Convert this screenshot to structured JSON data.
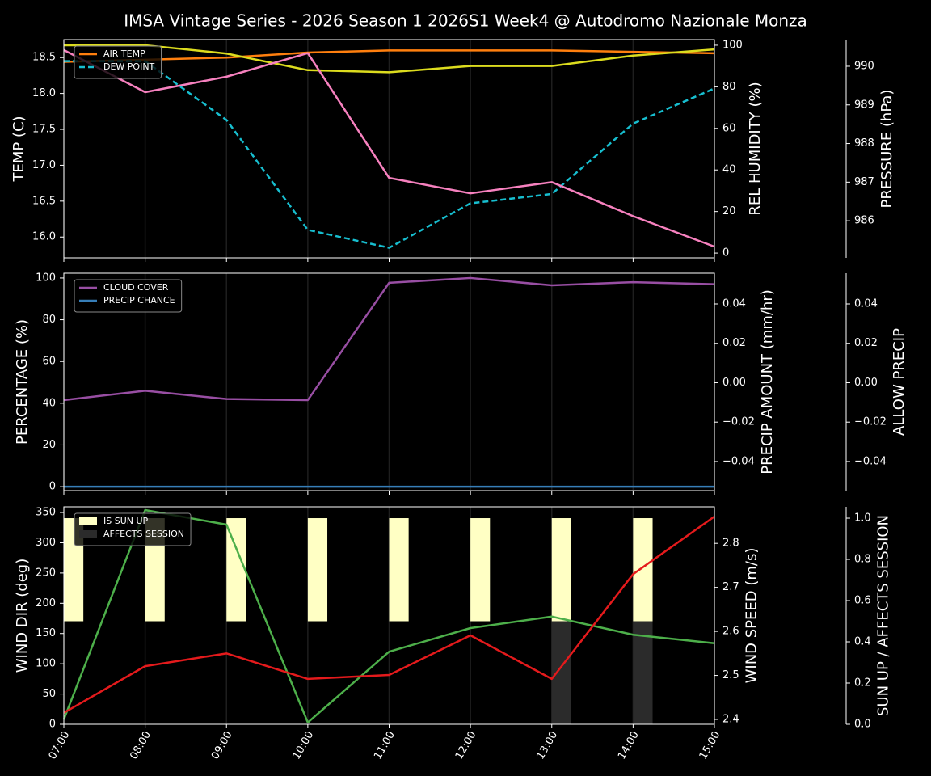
{
  "chart_data": [
    {
      "type": "line",
      "title": "IMSA Vintage Series - 2026 Season 1 2026S1 Week4 @ Autodromo Nazionale Monza",
      "ylabel": "TEMP (C)",
      "ylabel_color": "#ffffff",
      "ylim": [
        15.71,
        18.75
      ],
      "yticks": [
        {
          "value": 16,
          "label": "16.0"
        },
        16.5,
        {
          "value": 17,
          "label": "17.0"
        },
        17.5,
        {
          "value": 18,
          "label": "18.0"
        },
        18.5
      ],
      "y2label": "REL HUMIDITY (%)",
      "y2label_color": "#dcdc1e",
      "y2lim": [
        -2.3,
        102.7
      ],
      "y2ticks": [
        0,
        20,
        40,
        60,
        80,
        100
      ],
      "y3label": "PRESSURE (hPa)",
      "y3label_color": "#f781bf",
      "y3lim": [
        985.04,
        990.69
      ],
      "y3ticks": [
        986,
        987,
        988,
        989,
        990
      ],
      "grid": true,
      "legend": "upper left",
      "series": [
        {
          "name": "AIR TEMP",
          "color": "#ff7f0e",
          "values": [
            18.44,
            18.47,
            18.5,
            18.57,
            18.6,
            18.6,
            18.6,
            18.58,
            18.56
          ]
        },
        {
          "name": "DEW POINT",
          "color": "#17becf",
          "dash": "dashed",
          "values": [
            18.45,
            18.45,
            17.63,
            16.1,
            15.85,
            16.47,
            16.6,
            17.58,
            18.07
          ]
        },
        {
          "color": "#dcdc1e",
          "axis": "y2",
          "values": [
            100,
            100,
            96,
            88,
            87,
            90,
            90,
            95,
            98
          ]
        },
        {
          "color": "#f781bf",
          "axis": "y3",
          "values": [
            990.42,
            989.33,
            989.73,
            990.34,
            987.11,
            986.71,
            987.0,
            986.12,
            985.33
          ]
        }
      ]
    },
    {
      "type": "line",
      "ylabel": "PERCENTAGE (%)",
      "ylabel_color": "#ffffff",
      "ylim": [
        -1.9,
        102.3
      ],
      "yticks": [
        0,
        20,
        40,
        60,
        80,
        100
      ],
      "y2label": "PRECIP AMOUNT (mm/hr)",
      "y2label_color": "#a0522d",
      "y2lim": [
        -0.0548,
        0.0556
      ],
      "y2ticks": [
        {
          "value": -0.04,
          "label": "−0.04"
        },
        {
          "value": -0.02,
          "label": "−0.02"
        },
        {
          "value": 0,
          "label": "0.00"
        },
        0.02,
        0.04
      ],
      "y3label": "ALLOW PRECIP",
      "y3label_color": "#ffffff",
      "y3lim": [
        -0.0548,
        0.0556
      ],
      "y3ticks": [
        {
          "value": -0.04,
          "label": "−0.04"
        },
        {
          "value": -0.02,
          "label": "−0.02"
        },
        {
          "value": 0,
          "label": "0.00"
        },
        0.02,
        0.04
      ],
      "grid": true,
      "legend": "upper left",
      "series": [
        {
          "name": "CLOUD COVER",
          "color": "#984ea3",
          "values": [
            41.5,
            46,
            42,
            41.5,
            97.7,
            100,
            96.5,
            98,
            97
          ]
        },
        {
          "name": "PRECIP CHANCE",
          "color": "#377eb8",
          "values": [
            0,
            0,
            0,
            0,
            0,
            0,
            0,
            0,
            0
          ]
        }
      ]
    },
    {
      "type": "line",
      "categories": [
        "07:00",
        "08:00",
        "09:00",
        "10:00",
        "11:00",
        "12:00",
        "13:00",
        "14:00",
        "15:00"
      ],
      "ylabel": "WIND DIR (deg)",
      "ylabel_color": "#4daf4a",
      "ylim": [
        0,
        359.4
      ],
      "yticks": [
        0,
        50,
        100,
        150,
        200,
        250,
        300,
        350
      ],
      "y2label": "WIND SPEED (m/s)",
      "y2label_color": "#e41a1c",
      "y2lim": [
        2.389,
        2.883
      ],
      "y2ticks": [
        2.4,
        2.5,
        2.6,
        2.7,
        2.8
      ],
      "y3label": "SUN UP / AFFECTS SESSION",
      "y3label_color": "#ffffff",
      "y3lim": [
        0,
        1.055
      ],
      "y3ticks": [
        {
          "value": 0,
          "label": "0.0"
        },
        0.2,
        0.4,
        0.6,
        0.8,
        {
          "value": 1,
          "label": "1.0"
        }
      ],
      "grid": true,
      "legend": "upper left",
      "series": [
        {
          "name": "IS SUN UP",
          "type": "bar",
          "color": "#ffffc4",
          "axis": "y3",
          "values": [
            [
              0.5,
              1
            ],
            [
              0.5,
              1
            ],
            [
              0.5,
              1
            ],
            [
              0.5,
              1
            ],
            [
              0.5,
              1
            ],
            [
              0.5,
              1
            ],
            [
              0.5,
              1
            ],
            [
              0.5,
              1
            ],
            null
          ]
        },
        {
          "name": "AFFECTS SESSION",
          "type": "bar",
          "color": "#2b2b2b",
          "axis": "y3",
          "values": [
            0,
            0,
            0,
            0,
            0,
            0,
            0.5,
            0.5,
            null
          ]
        },
        {
          "color": "#4daf4a",
          "values": [
            8,
            354,
            330,
            3,
            120,
            159,
            178,
            148,
            134
          ]
        },
        {
          "color": "#e41a1c",
          "axis": "y2",
          "values": [
            2.415,
            2.521,
            2.55,
            2.492,
            2.501,
            2.591,
            2.492,
            2.73,
            2.861
          ]
        }
      ]
    }
  ]
}
